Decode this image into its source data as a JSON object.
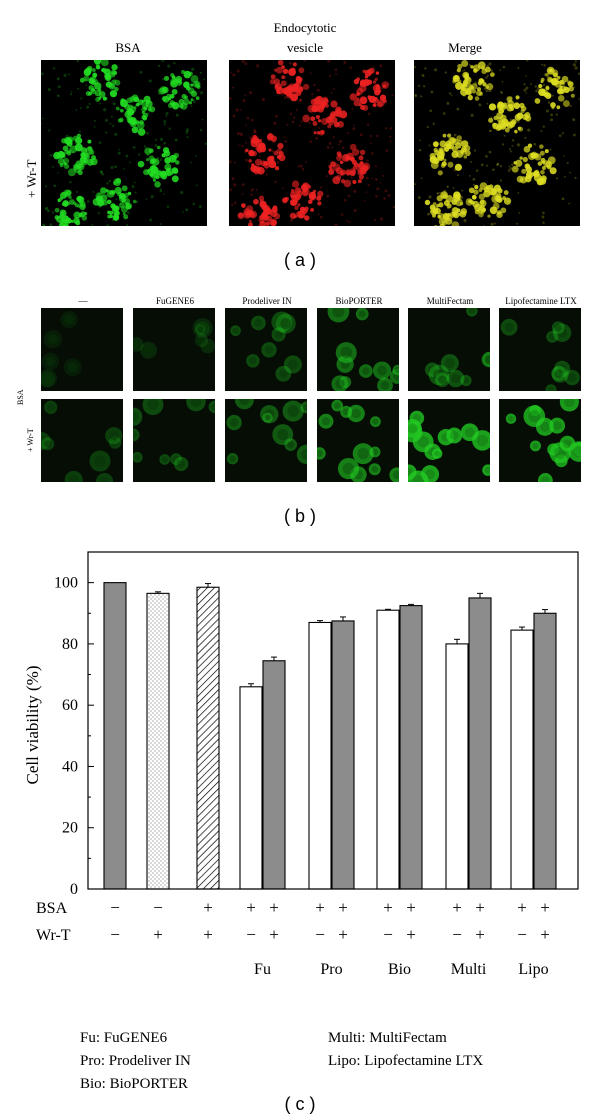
{
  "panel_a": {
    "titles": [
      "BSA",
      "Endocytotic\nvesicle",
      "Merge"
    ],
    "title_line1": [
      "BSA",
      "Endocytotic",
      "Merge"
    ],
    "title_line2": [
      "",
      "vesicle",
      ""
    ],
    "row_label": "+ Wr-T",
    "caption": "( a )",
    "colors": {
      "bsa": "#22dd22",
      "vesicle": "#ee2222",
      "merge": "#dddd22"
    }
  },
  "panel_b": {
    "columns": [
      "—",
      "FuGENE6",
      "Prodeliver IN",
      "BioPORTER",
      "MultiFectam",
      "Lipofectamine LTX"
    ],
    "row_labels": [
      "BSA",
      "+ Wr-T"
    ],
    "caption": "( b )",
    "intensity": {
      "row1": [
        0.02,
        0.08,
        0.35,
        0.6,
        0.4,
        0.35
      ],
      "row2": [
        0.25,
        0.35,
        0.45,
        0.75,
        1.0,
        0.95
      ]
    }
  },
  "panel_c": {
    "caption": "( c )",
    "legend": {
      "left": [
        "Fu: FuGENE6",
        "Pro: Prodeliver IN",
        "Bio: BioPORTER"
      ],
      "right": [
        "Multi: MultiFectam",
        "Lipo: Lipofectamine LTX"
      ]
    }
  },
  "chart_data": {
    "type": "bar",
    "ylabel": "Cell viability (%)",
    "ylim": [
      0,
      110
    ],
    "yticks": [
      0,
      20,
      40,
      60,
      80,
      100
    ],
    "bars": [
      {
        "value": 100,
        "error": 0,
        "fill": "gray"
      },
      {
        "value": 96.5,
        "error": 0.5,
        "fill": "dotted"
      },
      {
        "value": 98.5,
        "error": 1.2,
        "fill": "hatched"
      },
      {
        "value": 66,
        "error": 1.0,
        "fill": "white"
      },
      {
        "value": 74.5,
        "error": 1.2,
        "fill": "gray"
      },
      {
        "value": 87,
        "error": 0.6,
        "fill": "white"
      },
      {
        "value": 87.5,
        "error": 1.3,
        "fill": "gray"
      },
      {
        "value": 91,
        "error": 0.3,
        "fill": "white"
      },
      {
        "value": 92.5,
        "error": 0.4,
        "fill": "gray"
      },
      {
        "value": 80,
        "error": 1.5,
        "fill": "white"
      },
      {
        "value": 95,
        "error": 1.5,
        "fill": "gray"
      },
      {
        "value": 84.5,
        "error": 1.0,
        "fill": "white"
      },
      {
        "value": 90,
        "error": 1.2,
        "fill": "gray"
      }
    ],
    "row_names": [
      "BSA",
      "Wr-T"
    ],
    "bsa_signs": [
      "−",
      "−",
      "+",
      "+",
      "+",
      "+",
      "+",
      "+",
      "+",
      "+",
      "+",
      "+",
      "+"
    ],
    "wrt_signs": [
      "−",
      "+",
      "+",
      "−",
      "+",
      "−",
      "+",
      "−",
      "+",
      "−",
      "+",
      "−",
      "+"
    ],
    "groups": [
      {
        "label": "Fu",
        "bars": [
          3,
          4
        ]
      },
      {
        "label": "Pro",
        "bars": [
          5,
          6
        ]
      },
      {
        "label": "Bio",
        "bars": [
          7,
          8
        ]
      },
      {
        "label": "Multi",
        "bars": [
          9,
          10
        ]
      },
      {
        "label": "Lipo",
        "bars": [
          11,
          12
        ]
      }
    ],
    "colors": {
      "gray": "#8c8c8c",
      "white": "#ffffff",
      "axis": "#000000"
    }
  }
}
